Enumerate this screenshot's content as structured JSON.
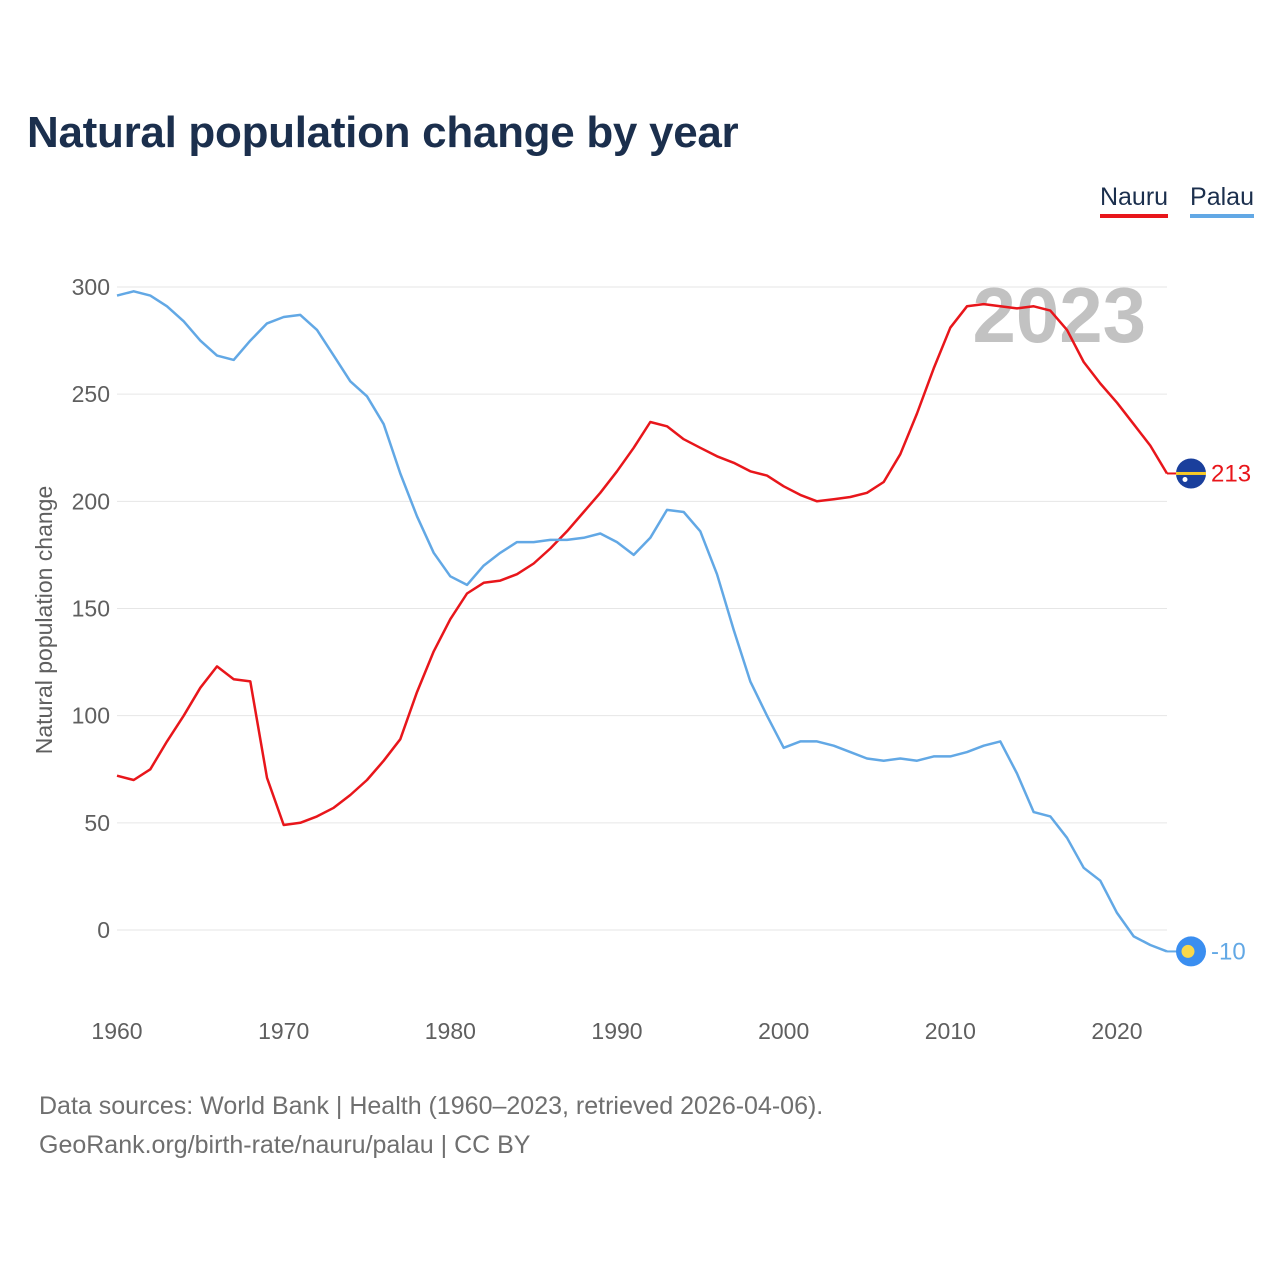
{
  "title": "Natural population change by year",
  "legend": [
    {
      "name": "Nauru",
      "color": "#e8161b"
    },
    {
      "name": "Palau",
      "color": "#62a8e5"
    }
  ],
  "year_label": "2023",
  "footer": {
    "line1": "Data sources: World Bank | Health (1960–2023, retrieved 2026-04-06).",
    "line2": "GeoRank.org/birth-rate/nauru/palau | CC BY"
  },
  "chart_data": {
    "type": "line",
    "title": "Natural population change by year",
    "xlabel": "",
    "ylabel": "Natural population change",
    "xlim": [
      1960,
      2023
    ],
    "ylim": [
      -30,
      310
    ],
    "x_ticks": [
      1960,
      1970,
      1980,
      1990,
      2000,
      2010,
      2020
    ],
    "y_ticks": [
      0,
      50,
      100,
      150,
      200,
      250,
      300
    ],
    "grid": true,
    "legend_position": "top-right",
    "x": [
      1960,
      1961,
      1962,
      1963,
      1964,
      1965,
      1966,
      1967,
      1968,
      1969,
      1970,
      1971,
      1972,
      1973,
      1974,
      1975,
      1976,
      1977,
      1978,
      1979,
      1980,
      1981,
      1982,
      1983,
      1984,
      1985,
      1986,
      1987,
      1988,
      1989,
      1990,
      1991,
      1992,
      1993,
      1994,
      1995,
      1996,
      1997,
      1998,
      1999,
      2000,
      2001,
      2002,
      2003,
      2004,
      2005,
      2006,
      2007,
      2008,
      2009,
      2010,
      2011,
      2012,
      2013,
      2014,
      2015,
      2016,
      2017,
      2018,
      2019,
      2020,
      2021,
      2022,
      2023
    ],
    "series": [
      {
        "name": "Nauru",
        "color": "#e8161b",
        "end_label": "213",
        "values": [
          72,
          70,
          75,
          88,
          100,
          113,
          123,
          117,
          116,
          71,
          49,
          50,
          53,
          57,
          63,
          70,
          79,
          89,
          111,
          130,
          145,
          157,
          162,
          163,
          166,
          171,
          178,
          186,
          195,
          204,
          214,
          225,
          237,
          235,
          229,
          225,
          221,
          218,
          214,
          212,
          207,
          203,
          200,
          201,
          202,
          204,
          209,
          222,
          241,
          262,
          281,
          291,
          292,
          291,
          290,
          291,
          289,
          280,
          265,
          255,
          246,
          236,
          226,
          213
        ]
      },
      {
        "name": "Palau",
        "color": "#62a8e5",
        "end_label": "-10",
        "values": [
          296,
          298,
          296,
          291,
          284,
          275,
          268,
          266,
          275,
          283,
          286,
          287,
          280,
          268,
          256,
          249,
          236,
          213,
          193,
          176,
          165,
          161,
          170,
          176,
          181,
          181,
          182,
          182,
          183,
          185,
          181,
          175,
          183,
          196,
          195,
          186,
          166,
          140,
          116,
          100,
          85,
          88,
          88,
          86,
          83,
          80,
          79,
          80,
          79,
          81,
          81,
          83,
          86,
          88,
          73,
          55,
          53,
          43,
          29,
          23,
          8,
          -3,
          -7,
          -10
        ]
      }
    ]
  }
}
